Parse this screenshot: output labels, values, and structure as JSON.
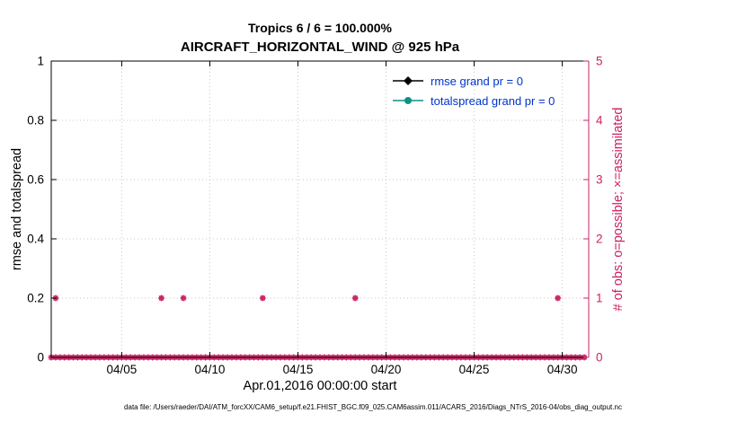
{
  "figure": {
    "footer": "data file: /Users/raeder/DAI/ATM_forcXX/CAM6_setup/f.e21.FHIST_BGC.f09_025.CAM6assim.011/ACARS_2016/Diags_NTrS_2016-04/obs_diag_output.nc"
  },
  "colors": {
    "obs": "#cc2265",
    "rmse": "#000000",
    "totalspread": "#0e9188",
    "legend_text": "#0033cc",
    "grid": "#c9c9c9",
    "axis": "#000000",
    "background": "#ffffff"
  },
  "legend": [
    {
      "label": "rmse grand pr = 0",
      "series": "rmse",
      "marker": "diamond",
      "color": "#000000"
    },
    {
      "label": "totalspread grand pr = 0",
      "series": "totalspread",
      "marker": "circle",
      "color": "#0e9188"
    }
  ],
  "chart_data": {
    "type": "scatter",
    "title": [
      "Tropics 6 / 6 = 100.000%",
      "AIRCRAFT_HORIZONTAL_WIND @ 925 hPa"
    ],
    "xlabel": "Apr.01,2016 00:00:00 start",
    "ylabel_left": "rmse and totalspread",
    "ylabel_right": "# of obs: o=possible; ×=assimilated",
    "x_axis_note": "days since Apr 1, 2016 00:00",
    "xlim_days": [
      0,
      30.5
    ],
    "xticks": [
      {
        "day": 4,
        "label": "04/05"
      },
      {
        "day": 9,
        "label": "04/10"
      },
      {
        "day": 14,
        "label": "04/15"
      },
      {
        "day": 19,
        "label": "04/20"
      },
      {
        "day": 24,
        "label": "04/25"
      },
      {
        "day": 29,
        "label": "04/30"
      }
    ],
    "ylim_left": [
      0,
      1
    ],
    "yticks_left": [
      {
        "v": 0,
        "label": "0"
      },
      {
        "v": 0.2,
        "label": "0.2"
      },
      {
        "v": 0.4,
        "label": "0.4"
      },
      {
        "v": 0.6,
        "label": "0.6"
      },
      {
        "v": 0.8,
        "label": "0.8"
      },
      {
        "v": 1,
        "label": "1"
      }
    ],
    "ylim_right": [
      0,
      5
    ],
    "yticks_right": [
      {
        "v": 0,
        "label": "0"
      },
      {
        "v": 1,
        "label": "1"
      },
      {
        "v": 2,
        "label": "2"
      },
      {
        "v": 3,
        "label": "3"
      },
      {
        "v": 4,
        "label": "4"
      },
      {
        "v": 5,
        "label": "5"
      }
    ],
    "grid": true,
    "legend_position": "top-right-inside",
    "series": [
      {
        "name": "rmse grand pr = 0",
        "axis": "left",
        "values": []
      },
      {
        "name": "totalspread grand pr = 0",
        "axis": "left",
        "values": []
      },
      {
        "name": "# of obs (possible and assimilated)",
        "axis": "right",
        "marker": "asterisk-and-circle",
        "baseline": {
          "value": 0,
          "day_start": 0,
          "day_end": 30.25,
          "day_step": 0.25
        },
        "spikes": [
          {
            "day": 0.25,
            "value": 1
          },
          {
            "day": 6.25,
            "value": 1
          },
          {
            "day": 7.5,
            "value": 1
          },
          {
            "day": 12,
            "value": 1
          },
          {
            "day": 17.25,
            "value": 1
          },
          {
            "day": 28.75,
            "value": 1
          }
        ]
      }
    ]
  }
}
